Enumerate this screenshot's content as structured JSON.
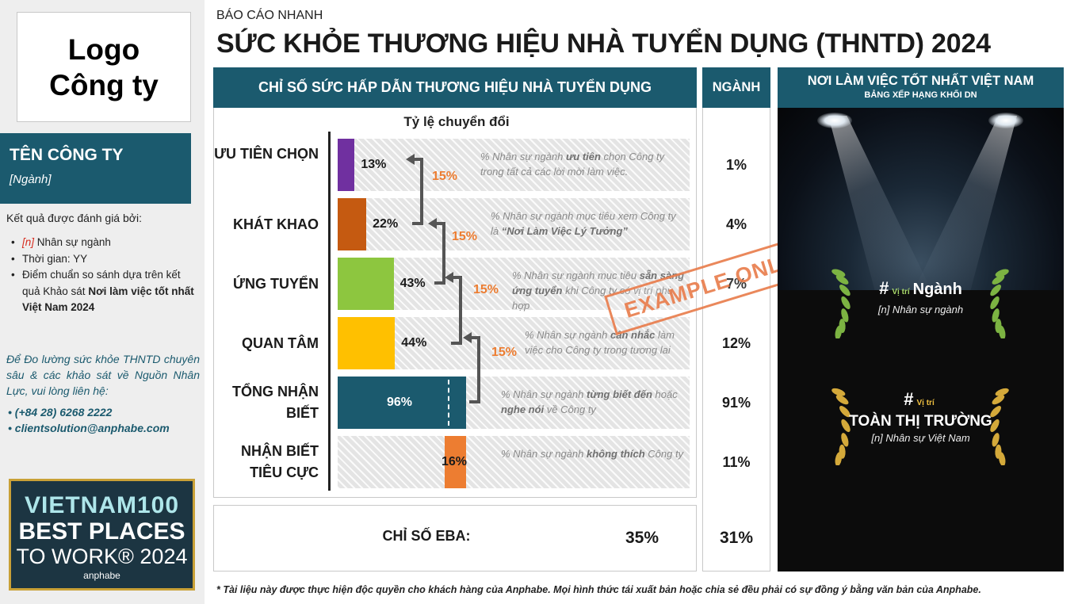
{
  "sidebar": {
    "logo_text": "Logo\nCông ty",
    "company_name": "TÊN CÔNG TY",
    "industry": "[Ngành]",
    "eval_title": "Kết quả được đánh giá bởi:",
    "eval_items": {
      "n_marker": "[n]",
      "n_text": " Nhân sự ngành",
      "time": "Thời gian: YY",
      "benchmark_prefix": "Điểm chuẩn so sánh dựa trên kết quả Khảo sát ",
      "benchmark_bold": "Nơi làm việc tốt nhất Việt Nam 2024"
    },
    "contact_text": "Để Đo lường sức khỏe THNTD chuyên sâu & các khảo sát về Nguồn Nhân Lực, vui lòng liên hệ:",
    "phone": "(+84 28) 6268 2222",
    "email": "clientsolution@anphabe.com",
    "badge": {
      "line1": "VIETNAM100",
      "line2": "BEST PLACES",
      "line3": "TO WORK® 2024",
      "line4": "anphabe"
    }
  },
  "header": {
    "pre_title": "BÁO CÁO NHANH",
    "title": "SỨC KHỎE THƯƠNG HIỆU NHÀ TUYỂN DỤNG (THNTD) 2024"
  },
  "panel": {
    "index_header": "CHỈ SỐ SỨC HẤP DẪN THƯƠNG HIỆU NHÀ TUYỂN DỤNG",
    "industry_header": "NGÀNH",
    "conversion_label": "Tỷ lệ chuyển đổi",
    "stamp": "EXAMPLE ONLY",
    "eba_label": "CHỈ SỐ EBA:",
    "eba_value": "35%",
    "eba_industry": "31%"
  },
  "chart_data": {
    "type": "bar",
    "orientation": "horizontal",
    "categories": [
      "ƯU TIÊN CHỌN",
      "KHÁT KHAO",
      "ỨNG TUYỂN",
      "QUAN TÂM",
      "TỔNG NHẬN BIẾT",
      "NHẬN BIẾT TIÊU CỰC"
    ],
    "values": [
      13,
      22,
      43,
      44,
      96,
      16
    ],
    "value_labels": [
      "13%",
      "22%",
      "43%",
      "44%",
      "96%",
      "16%"
    ],
    "industry_values": [
      "1%",
      "4%",
      "7%",
      "12%",
      "91%",
      "11%"
    ],
    "colors": [
      "#7030a0",
      "#c55a11",
      "#8dc63f",
      "#ffc000",
      "#1b5a6e",
      "#ed7d31"
    ],
    "conversion_rates": [
      "15%",
      "15%",
      "15%",
      "15%"
    ],
    "descriptions": [
      {
        "pre": "% Nhân sự ngành ",
        "bold": "ưu tiên",
        "post": " chọn Công ty trong tất cả các lời mời làm việc."
      },
      {
        "pre": "% Nhân sự ngành mục tiêu xem Công ty là ",
        "bold": "“Nơi Làm Việc Lý Tưởng”",
        "post": ""
      },
      {
        "pre": "% Nhân sự ngành mục tiêu ",
        "bold": "sẵn sàng ứng tuyển",
        "post": " khi Công ty có vị trí phù hợp"
      },
      {
        "pre": "% Nhân sự ngành ",
        "bold": "cân nhắc",
        "post": " làm việc cho Công ty trong tương lai"
      },
      {
        "pre": "% Nhân sự ngành ",
        "bold": "từng biết đến",
        "post": " hoặc ",
        "bold2": "nghe nói",
        "post2": " về Công ty"
      },
      {
        "pre": "% Nhân sự ngành ",
        "bold": "không thích",
        "post": " Công ty"
      }
    ],
    "xlim": [
      0,
      100
    ]
  },
  "right": {
    "title": "NƠI LÀM VIỆC TỐT NHẤT VIỆT NAM",
    "subtitle": "BẢNG XẾP HẠNG KHỐI DN",
    "industry_rank": {
      "hash": "#",
      "pos": "Vị trí",
      "label": "Ngành",
      "sub": "[n] Nhân sự ngành"
    },
    "market_rank": {
      "hash": "#",
      "pos": "Vị trí",
      "label": "TOÀN THỊ TRƯỜNG",
      "sub": "[n]  Nhân sự Việt Nam"
    }
  },
  "footnote": "* Tài liệu này được thực hiện độc quyền cho khách hàng của Anphabe. Mọi hình thức tái xuất bản hoặc chia sẻ đều phải có sự đồng ý bằng văn bản của Anphabe.",
  "colors": {
    "brand": "#1b5a6e",
    "accent": "#ed7d31",
    "gold": "#c9a137"
  }
}
